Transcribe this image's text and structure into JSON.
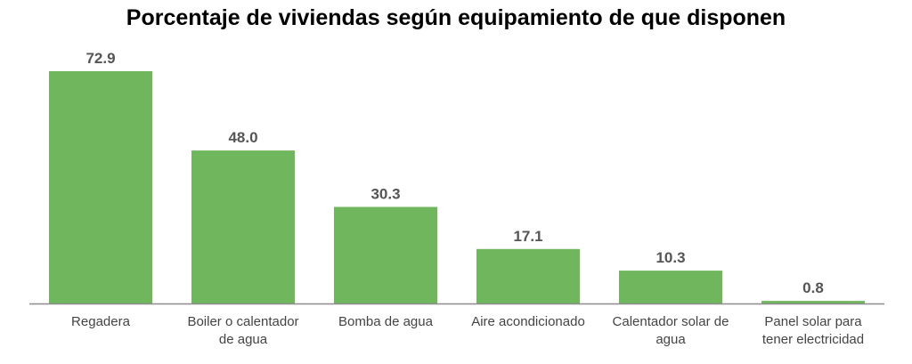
{
  "chart_data": {
    "type": "bar",
    "title": "Porcentaje de viviendas según equipamiento de que disponen",
    "xlabel": "",
    "ylabel": "",
    "categories": [
      [
        "Regadera"
      ],
      [
        "Boiler o calentador",
        "de agua"
      ],
      [
        "Bomba de agua"
      ],
      [
        "Aire acondicionado"
      ],
      [
        "Calentador solar de",
        "agua"
      ],
      [
        "Panel solar para",
        "tener electricidad"
      ]
    ],
    "values": [
      72.9,
      48.0,
      30.3,
      17.1,
      10.3,
      0.8
    ],
    "value_labels": [
      "72.9",
      "48.0",
      "30.3",
      "17.1",
      "10.3",
      "0.8"
    ],
    "ylim": [
      0,
      72.9
    ],
    "grid": false,
    "legend": "none",
    "bar_color": "#70b65d",
    "axis_color": "#8c8c8c"
  }
}
